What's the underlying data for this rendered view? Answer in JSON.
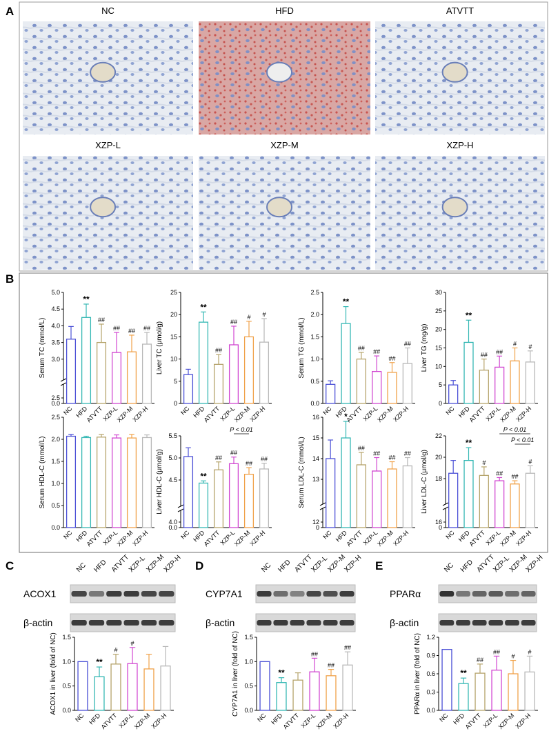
{
  "colors": {
    "NC": "#4a4fd6",
    "HFD": "#33b7b3",
    "ATVTT": "#b5a36a",
    "XZP-L": "#d146d1",
    "XZP-M": "#f0a24a",
    "XZP-H": "#b8b8b8",
    "tissue_blue": "#8fa6d4",
    "tissue_pink": "#d98a80"
  },
  "panel_letters": {
    "A": "A",
    "B": "B",
    "C": "C",
    "D": "D",
    "E": "E"
  },
  "histology": {
    "panels": [
      {
        "label": "NC",
        "stain": "blue"
      },
      {
        "label": "HFD",
        "stain": "red"
      },
      {
        "label": "ATVTT",
        "stain": "blue"
      },
      {
        "label": "XZP-L",
        "stain": "blue"
      },
      {
        "label": "XZP-M",
        "stain": "blue"
      },
      {
        "label": "XZP-H",
        "stain": "blue"
      }
    ]
  },
  "chart_data": [
    {
      "id": "serum-tc",
      "type": "bar",
      "ylabel": "Serum TC (mmol/L)",
      "categories": [
        "NC",
        "HFD",
        "ATVTT",
        "XZP-L",
        "XZP-M",
        "XZP-H"
      ],
      "values": [
        3.6,
        4.25,
        3.5,
        3.2,
        3.22,
        3.45
      ],
      "errors": [
        0.38,
        0.4,
        0.55,
        0.6,
        0.5,
        0.35
      ],
      "axis": {
        "lower_ticks": [
          0
        ],
        "upper_ticks": [
          2.5,
          3.0,
          3.5,
          4.0,
          4.5,
          5.0
        ],
        "upper_range": [
          2.5,
          5.0
        ]
      },
      "annotations": [
        "",
        "**",
        "##",
        "##",
        "##",
        "##"
      ]
    },
    {
      "id": "liver-tc",
      "type": "bar",
      "ylabel": "Liver TC (μmol/g)",
      "categories": [
        "NC",
        "HFD",
        "ATVTT",
        "XZP-L",
        "XZP-M",
        "XZP-H"
      ],
      "values": [
        6.5,
        18.3,
        8.8,
        13.2,
        15.0,
        13.8
      ],
      "errors": [
        1.2,
        2.3,
        2.2,
        4.2,
        3.5,
        5.3
      ],
      "axis": {
        "ticks": [
          0,
          5,
          10,
          15,
          20,
          25
        ],
        "range": [
          0,
          25
        ]
      },
      "annotations": [
        "",
        "**",
        "##",
        "##",
        "#",
        "#"
      ]
    },
    {
      "id": "serum-tg",
      "type": "bar",
      "ylabel": "Serum TG (mmol/L)",
      "categories": [
        "NC",
        "HFD",
        "ATVTT",
        "XZP-L",
        "XZP-M",
        "XZP-H"
      ],
      "values": [
        0.43,
        1.8,
        1.0,
        0.72,
        0.7,
        0.9
      ],
      "errors": [
        0.08,
        0.38,
        0.15,
        0.35,
        0.22,
        0.35
      ],
      "axis": {
        "ticks": [
          0.0,
          0.5,
          1.0,
          1.5,
          2.0,
          2.5
        ],
        "range": [
          0,
          2.5
        ]
      },
      "annotations": [
        "",
        "**",
        "##",
        "##",
        "##",
        "##"
      ]
    },
    {
      "id": "liver-tg",
      "type": "bar",
      "ylabel": "Liver TG (mg/g)",
      "categories": [
        "NC",
        "HFD",
        "ATVTT",
        "XZP-L",
        "XZP-M",
        "XZP-H"
      ],
      "values": [
        5.0,
        16.5,
        9.0,
        9.8,
        11.5,
        11.2
      ],
      "errors": [
        1.2,
        6.0,
        3.0,
        3.0,
        3.5,
        3.0
      ],
      "axis": {
        "ticks": [
          0,
          5,
          10,
          15,
          20,
          25,
          30
        ],
        "range": [
          0,
          30
        ]
      },
      "annotations": [
        "",
        "**",
        "##",
        "##",
        "#",
        "#"
      ]
    },
    {
      "id": "serum-hdl",
      "type": "bar",
      "ylabel": "Serum HDL-C (mmol/L)",
      "categories": [
        "NC",
        "HFD",
        "ATVTT",
        "XZP-L",
        "XZP-M",
        "XZP-H"
      ],
      "values": [
        2.07,
        2.04,
        2.05,
        2.03,
        2.03,
        2.04
      ],
      "errors": [
        0.04,
        0.03,
        0.06,
        0.07,
        0.08,
        0.06
      ],
      "axis": {
        "ticks": [
          0.0,
          0.5,
          1.0,
          1.5,
          2.0,
          2.5
        ],
        "range": [
          0,
          2.5
        ]
      },
      "annotations": [
        "",
        "",
        "",
        "",
        "",
        ""
      ]
    },
    {
      "id": "liver-hdl",
      "type": "bar",
      "ylabel": "Liver HDL-C (μmol/g)",
      "categories": [
        "NC",
        "HFD",
        "ATVTT",
        "XZP-L",
        "XZP-M",
        "XZP-H"
      ],
      "values": [
        5.03,
        4.43,
        4.73,
        4.87,
        4.63,
        4.75
      ],
      "errors": [
        0.2,
        0.05,
        0.18,
        0.15,
        0.15,
        0.13
      ],
      "axis": {
        "lower_ticks": [
          0
        ],
        "upper_ticks": [
          4.0,
          4.5,
          5.0,
          5.5
        ],
        "upper_range": [
          4.0,
          5.5
        ]
      },
      "annotations": [
        "",
        "**",
        "##",
        "##",
        "##",
        "##"
      ],
      "brackets": [
        {
          "from": 3,
          "to": 4,
          "label": "P < 0.01"
        }
      ]
    },
    {
      "id": "serum-ldl",
      "type": "bar",
      "ylabel": "Serum LDL-C (mmol/L)",
      "categories": [
        "NC",
        "HFD",
        "ATVTT",
        "XZP-L",
        "XZP-M",
        "XZP-H"
      ],
      "values": [
        14.0,
        15.0,
        13.7,
        13.4,
        13.5,
        13.65
      ],
      "errors": [
        0.9,
        0.8,
        0.6,
        0.65,
        0.35,
        0.4
      ],
      "axis": {
        "lower_ticks": [
          0
        ],
        "upper_ticks": [
          12,
          13,
          14,
          15,
          16
        ],
        "upper_range": [
          12,
          16
        ]
      },
      "annotations": [
        "",
        "*",
        "##",
        "##",
        "##",
        "##"
      ]
    },
    {
      "id": "liver-ldl",
      "type": "bar",
      "ylabel": "Liver LDL-C (μmol/g)",
      "categories": [
        "NC",
        "HFD",
        "ATVTT",
        "XZP-L",
        "XZP-M",
        "XZP-H"
      ],
      "values": [
        18.5,
        19.7,
        18.3,
        17.8,
        17.5,
        18.5
      ],
      "errors": [
        1.2,
        1.2,
        0.8,
        0.3,
        0.3,
        0.7
      ],
      "axis": {
        "lower_ticks": [
          0
        ],
        "upper_ticks": [
          16,
          18,
          20,
          22
        ],
        "upper_range": [
          16,
          22
        ]
      },
      "annotations": [
        "",
        "**",
        "#",
        "##",
        "##",
        "#"
      ],
      "brackets": [
        {
          "from": 3,
          "to": 5,
          "label": "P < 0.01"
        },
        {
          "from": 4,
          "to": 5,
          "label": "P < 0.01"
        }
      ]
    },
    {
      "id": "acox1",
      "type": "bar",
      "ylabel": "ACOX1 in liver (fold of NC)",
      "categories": [
        "NC",
        "HFD",
        "ATVTT",
        "XZP-L",
        "XZP-M",
        "XZP-H"
      ],
      "values": [
        1.0,
        0.69,
        0.95,
        0.96,
        0.85,
        0.91
      ],
      "errors": [
        0.0,
        0.2,
        0.2,
        0.33,
        0.3,
        0.4
      ],
      "axis": {
        "ticks": [
          0.0,
          0.5,
          1.0,
          1.5
        ],
        "range": [
          0,
          1.5
        ]
      },
      "annotations": [
        "",
        "**",
        "#",
        "#",
        "",
        ""
      ]
    },
    {
      "id": "cyp7a1",
      "type": "bar",
      "ylabel": "CYP7A1 in liver (fold of NC)",
      "categories": [
        "NC",
        "HFD",
        "ATVTT",
        "XZP-L",
        "XZP-M",
        "XZP-H"
      ],
      "values": [
        1.0,
        0.57,
        0.62,
        0.79,
        0.71,
        0.93
      ],
      "errors": [
        0.0,
        0.1,
        0.15,
        0.28,
        0.13,
        0.27
      ],
      "axis": {
        "ticks": [
          0.0,
          0.5,
          1.0,
          1.5
        ],
        "range": [
          0,
          1.5
        ]
      },
      "annotations": [
        "",
        "**",
        "",
        "##",
        "##",
        "##"
      ]
    },
    {
      "id": "ppara",
      "type": "bar",
      "ylabel": "PPARα in liver (fold of NC)",
      "categories": [
        "NC",
        "HFD",
        "ATVTT",
        "XZP-L",
        "XZP-M",
        "XZP-H"
      ],
      "values": [
        1.0,
        0.44,
        0.61,
        0.66,
        0.6,
        0.63
      ],
      "errors": [
        0.0,
        0.09,
        0.15,
        0.23,
        0.22,
        0.26
      ],
      "axis": {
        "ticks": [
          0.0,
          0.3,
          0.6,
          0.9,
          1.2
        ],
        "range": [
          0,
          1.2
        ]
      },
      "annotations": [
        "",
        "**",
        "##",
        "##",
        "#",
        "#"
      ]
    }
  ],
  "blots": [
    {
      "id": "blot-c",
      "lanes": [
        "NC",
        "HFD",
        "ATVTT",
        "XZP-L",
        "XZP-M",
        "XZP-H"
      ],
      "rows": [
        {
          "label": "ACOX1",
          "intensity": [
            0.8,
            0.55,
            0.85,
            0.85,
            0.8,
            0.8
          ]
        },
        {
          "label": "β-actin",
          "intensity": [
            0.85,
            0.85,
            0.85,
            0.85,
            0.85,
            0.85
          ]
        }
      ]
    },
    {
      "id": "blot-d",
      "lanes": [
        "NC",
        "HFD",
        "ATVTT",
        "XZP-L",
        "XZP-M",
        "XZP-H"
      ],
      "rows": [
        {
          "label": "CYP7A1",
          "intensity": [
            0.85,
            0.6,
            0.5,
            0.8,
            0.75,
            0.85
          ]
        },
        {
          "label": "β-actin",
          "intensity": [
            0.85,
            0.85,
            0.85,
            0.85,
            0.85,
            0.85
          ]
        }
      ]
    },
    {
      "id": "blot-e",
      "lanes": [
        "NC",
        "HFD",
        "ATVTT",
        "XZP-L",
        "XZP-M",
        "XZP-H"
      ],
      "rows": [
        {
          "label": "PPARα",
          "intensity": [
            0.9,
            0.55,
            0.65,
            0.7,
            0.6,
            0.65
          ]
        },
        {
          "label": "β-actin",
          "intensity": [
            0.85,
            0.85,
            0.85,
            0.85,
            0.85,
            0.85
          ]
        }
      ]
    }
  ]
}
